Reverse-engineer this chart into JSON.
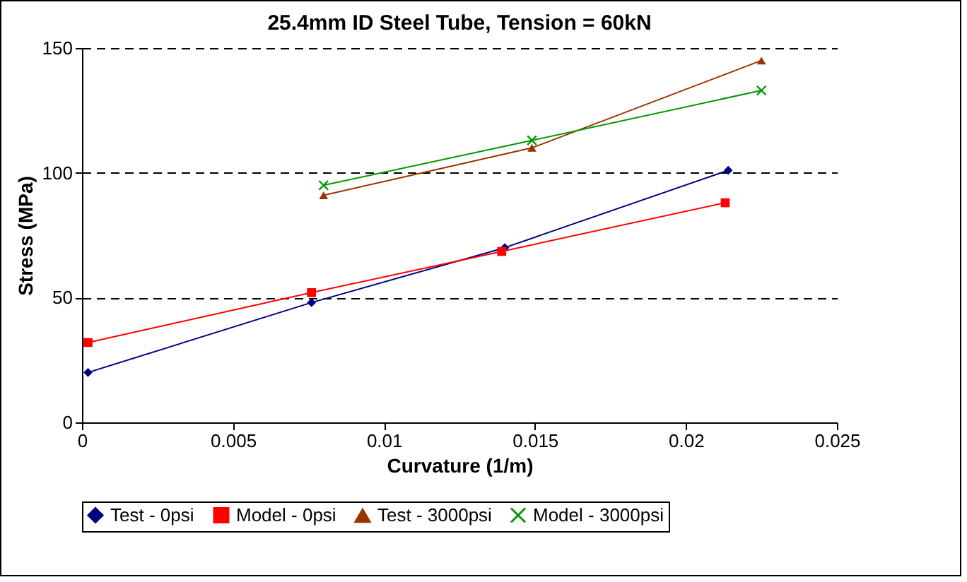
{
  "chart_data": {
    "type": "line",
    "title": "25.4mm ID Steel Tube, Tension = 60kN",
    "xlabel": "Curvature (1/m)",
    "ylabel": "Stress (MPa)",
    "xlim": [
      0,
      0.025
    ],
    "xticks": [
      0,
      0.005,
      0.01,
      0.015,
      0.02,
      0.025
    ],
    "ylim": [
      0,
      150
    ],
    "yticks": [
      0,
      50,
      100,
      150
    ],
    "grid": "y",
    "legend": "bottom",
    "line_style": "solid",
    "series": [
      {
        "name": "Test - 0psi",
        "color": "#000080",
        "marker": "diamond",
        "x": [
          0.0002,
          0.0076,
          0.014,
          0.0214
        ],
        "values": [
          20,
          48,
          70,
          101
        ]
      },
      {
        "name": "Model - 0psi",
        "color": "#ff0000",
        "marker": "square",
        "x": [
          0.0002,
          0.0076,
          0.0139,
          0.0213
        ],
        "values": [
          32,
          52,
          68.5,
          88
        ]
      },
      {
        "name": "Test - 3000psi",
        "color": "#993300",
        "marker": "triangle",
        "x": [
          0.008,
          0.0149,
          0.0225
        ],
        "values": [
          91,
          110,
          145
        ]
      },
      {
        "name": "Model - 3000psi",
        "color": "#009900",
        "marker": "cross",
        "x": [
          0.008,
          0.0149,
          0.0225
        ],
        "values": [
          95,
          113,
          133
        ]
      }
    ]
  }
}
